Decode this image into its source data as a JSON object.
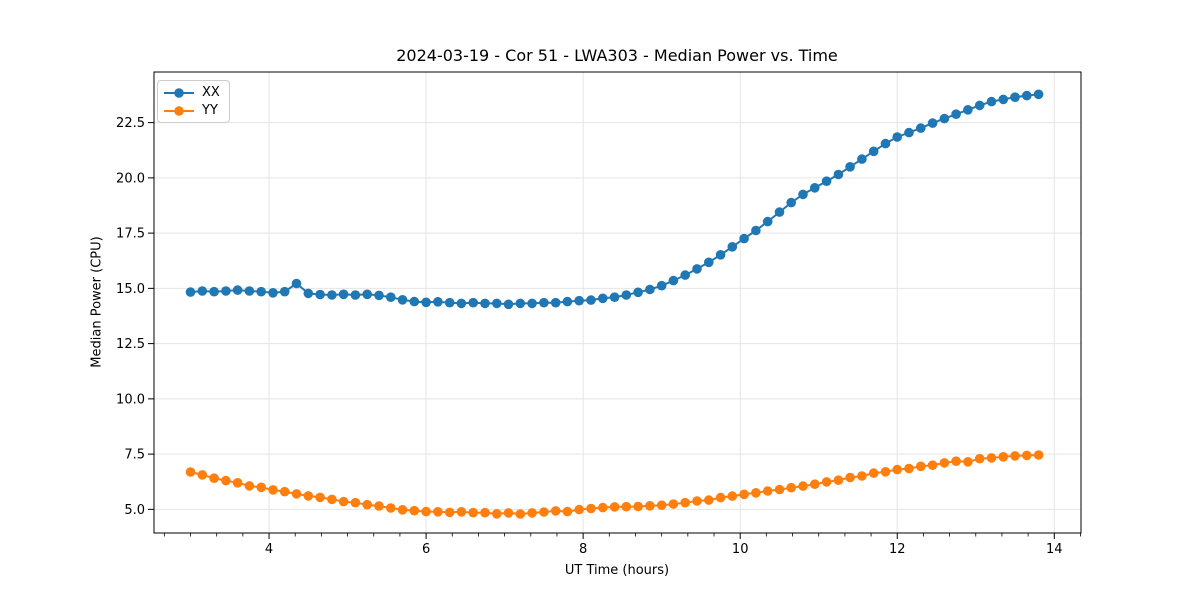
{
  "figure": {
    "title": "2024-03-19 - Cor 51 - LWA303 - Median Power vs. Time"
  },
  "chart_data": {
    "type": "line",
    "title": "2024-03-19 - Cor 51 - LWA303 - Median Power vs. Time",
    "xlabel": "UT Time (hours)",
    "ylabel": "Median Power (CPU)",
    "xlim": [
      2.535,
      14.34
    ],
    "ylim": [
      3.93,
      24.79
    ],
    "grid": true,
    "grid_color": "#e5e5e5",
    "spine_color": "#000000",
    "text_color": "#000000",
    "legend_position": "upper left",
    "marker": "circle",
    "x_ticks": {
      "values": [
        4,
        6,
        8,
        10,
        12,
        14
      ],
      "labels": [
        "4",
        "6",
        "8",
        "10",
        "12",
        "14"
      ]
    },
    "x_minor_tick_step": 0.33333,
    "y_ticks": {
      "values": [
        5.0,
        7.5,
        10.0,
        12.5,
        15.0,
        17.5,
        20.0,
        22.5
      ],
      "labels": [
        "5.0",
        "7.5",
        "10.0",
        "12.5",
        "15.0",
        "17.5",
        "20.0",
        "22.5"
      ]
    },
    "x": [
      3.0,
      3.15,
      3.3,
      3.45,
      3.6,
      3.75,
      3.9,
      4.05,
      4.2,
      4.35,
      4.5,
      4.65,
      4.8,
      4.95,
      5.1,
      5.25,
      5.4,
      5.55,
      5.7,
      5.85,
      6.0,
      6.15,
      6.3,
      6.45,
      6.6,
      6.75,
      6.9,
      7.05,
      7.2,
      7.35,
      7.5,
      7.65,
      7.8,
      7.95,
      8.1,
      8.25,
      8.4,
      8.55,
      8.7,
      8.85,
      9.0,
      9.15,
      9.3,
      9.45,
      9.6,
      9.75,
      9.9,
      10.05,
      10.2,
      10.35,
      10.5,
      10.65,
      10.8,
      10.95,
      11.1,
      11.25,
      11.4,
      11.55,
      11.7,
      11.85,
      12.0,
      12.15,
      12.3,
      12.45,
      12.6,
      12.75,
      12.9,
      13.05,
      13.2,
      13.35,
      13.5,
      13.65,
      13.8
    ],
    "series": [
      {
        "name": "XX",
        "color": "#1f77b4",
        "values": [
          14.83,
          14.88,
          14.85,
          14.88,
          14.92,
          14.88,
          14.85,
          14.8,
          14.85,
          15.22,
          14.77,
          14.72,
          14.7,
          14.73,
          14.7,
          14.73,
          14.68,
          14.6,
          14.48,
          14.4,
          14.37,
          14.39,
          14.35,
          14.32,
          14.35,
          14.32,
          14.32,
          14.28,
          14.32,
          14.32,
          14.35,
          14.35,
          14.4,
          14.44,
          14.47,
          14.55,
          14.6,
          14.7,
          14.82,
          14.95,
          15.12,
          15.35,
          15.6,
          15.88,
          16.18,
          16.52,
          16.88,
          17.25,
          17.62,
          18.02,
          18.45,
          18.88,
          19.25,
          19.55,
          19.85,
          20.15,
          20.5,
          20.85,
          21.2,
          21.55,
          21.85,
          22.05,
          22.25,
          22.48,
          22.68,
          22.88,
          23.08,
          23.28,
          23.45,
          23.55,
          23.65,
          23.72,
          23.78
        ]
      },
      {
        "name": "YY",
        "color": "#ff7f0e",
        "values": [
          6.69,
          6.56,
          6.41,
          6.3,
          6.2,
          6.06,
          6.0,
          5.88,
          5.8,
          5.7,
          5.61,
          5.54,
          5.45,
          5.35,
          5.3,
          5.21,
          5.15,
          5.06,
          4.98,
          4.94,
          4.9,
          4.89,
          4.86,
          4.89,
          4.85,
          4.85,
          4.8,
          4.84,
          4.79,
          4.84,
          4.88,
          4.93,
          4.9,
          4.99,
          5.04,
          5.08,
          5.11,
          5.12,
          5.13,
          5.16,
          5.19,
          5.24,
          5.3,
          5.38,
          5.42,
          5.53,
          5.6,
          5.68,
          5.75,
          5.83,
          5.9,
          5.98,
          6.05,
          6.14,
          6.24,
          6.32,
          6.44,
          6.51,
          6.64,
          6.7,
          6.8,
          6.85,
          6.95,
          7.0,
          7.1,
          7.18,
          7.15,
          7.29,
          7.33,
          7.38,
          7.42,
          7.44,
          7.46
        ]
      }
    ]
  }
}
